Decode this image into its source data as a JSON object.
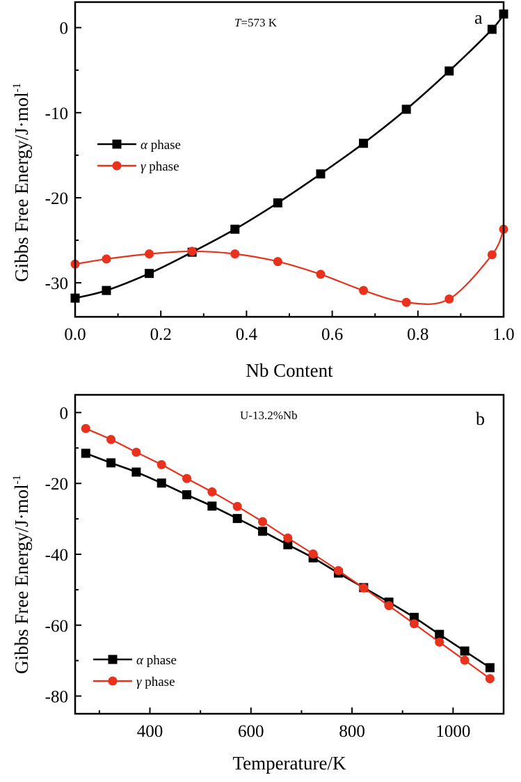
{
  "chart_data": [
    {
      "type": "line",
      "panel": "a",
      "annotation_italic": "T",
      "annotation_rest": "=573 K",
      "xlabel": "Nb Content",
      "ylabel": "Gibbs Free Energy/J·mol",
      "ylabel_sup": "-1",
      "xlim": [
        0.0,
        1.0
      ],
      "ylim": [
        -34,
        3
      ],
      "xticks": [
        0.0,
        0.2,
        0.4,
        0.6,
        0.8,
        1.0
      ],
      "xtick_labels": [
        "0.0",
        "0.2",
        "0.4",
        "0.6",
        "0.8",
        "1.0"
      ],
      "yticks": [
        0,
        -10,
        -20,
        -30
      ],
      "ytick_labels": [
        "0",
        "-10",
        "-20",
        "-30"
      ],
      "legend_position": "center-left",
      "series": [
        {
          "name_symbol": "α",
          "name_rest": " phase",
          "color": "#000000",
          "marker": "square",
          "x": [
            0.0,
            0.073,
            0.173,
            0.273,
            0.373,
            0.473,
            0.573,
            0.673,
            0.773,
            0.873,
            0.973,
            1.0
          ],
          "y": [
            -31.8,
            -30.9,
            -28.9,
            -26.4,
            -23.7,
            -20.6,
            -17.2,
            -13.6,
            -9.6,
            -5.1,
            -0.2,
            1.6
          ]
        },
        {
          "name_symbol": "γ",
          "name_rest": " phase",
          "color": "#e8321e",
          "marker": "circle",
          "x": [
            0.0,
            0.073,
            0.173,
            0.273,
            0.373,
            0.473,
            0.573,
            0.673,
            0.773,
            0.873,
            0.973,
            1.0
          ],
          "y": [
            -27.8,
            -27.2,
            -26.6,
            -26.3,
            -26.6,
            -27.5,
            -29.0,
            -30.9,
            -32.3,
            -31.9,
            -26.7,
            -23.7
          ]
        }
      ]
    },
    {
      "type": "line",
      "panel": "b",
      "annotation": "U-13.2%Nb",
      "xlabel": "Temperature/K",
      "ylabel": "Gibbs Free Energy/J·mol",
      "ylabel_sup": "-1",
      "xlim": [
        252,
        1100
      ],
      "ylim": [
        -85,
        5
      ],
      "xticks": [
        400,
        600,
        800,
        1000
      ],
      "xtick_labels": [
        "400",
        "600",
        "800",
        "1000"
      ],
      "yticks": [
        0,
        -20,
        -40,
        -60,
        -80
      ],
      "ytick_labels": [
        "0",
        "-20",
        "-40",
        "-60",
        "-80"
      ],
      "legend_position": "bottom-left",
      "series": [
        {
          "name_symbol": "α",
          "name_rest": " phase",
          "color": "#000000",
          "marker": "square",
          "x": [
            273,
            323,
            373,
            423,
            473,
            523,
            573,
            623,
            673,
            723,
            773,
            823,
            873,
            923,
            973,
            1023,
            1073
          ],
          "y": [
            -11.5,
            -14.2,
            -16.8,
            -19.9,
            -23.2,
            -26.4,
            -29.9,
            -33.5,
            -37.3,
            -41.0,
            -45.3,
            -49.4,
            -53.5,
            -57.8,
            -62.6,
            -67.3,
            -72.0
          ]
        },
        {
          "name_symbol": "γ",
          "name_rest": " phase",
          "color": "#e8321e",
          "marker": "circle",
          "x": [
            273,
            323,
            373,
            423,
            473,
            523,
            573,
            623,
            673,
            723,
            773,
            823,
            873,
            923,
            973,
            1023,
            1073
          ],
          "y": [
            -4.5,
            -7.6,
            -11.2,
            -14.7,
            -18.6,
            -22.4,
            -26.5,
            -30.8,
            -35.4,
            -39.9,
            -44.6,
            -49.5,
            -54.5,
            -59.6,
            -64.8,
            -69.9,
            -75.1
          ]
        }
      ]
    }
  ]
}
